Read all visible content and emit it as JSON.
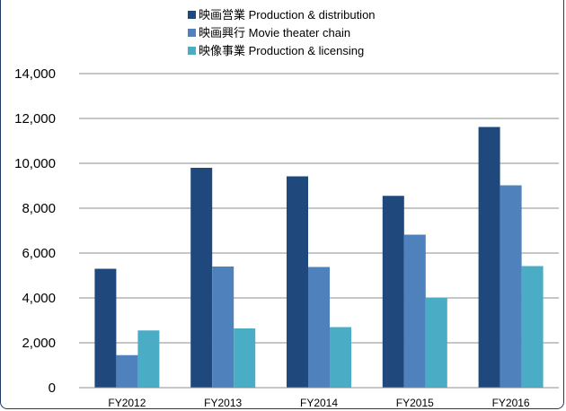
{
  "chart_data": {
    "type": "bar",
    "categories": [
      "FY2012",
      "FY2013",
      "FY2014",
      "FY2015",
      "FY2016"
    ],
    "series": [
      {
        "name": "映画営業 Production & distribution",
        "color": "#1f497d",
        "values": [
          5300,
          9800,
          9420,
          8550,
          11620
        ]
      },
      {
        "name": "映画興行 Movie theater chain",
        "color": "#4f81bd",
        "values": [
          1450,
          5400,
          5380,
          6820,
          9020
        ]
      },
      {
        "name": "映像事業 Production & licensing",
        "color": "#4bacc6",
        "values": [
          2550,
          2640,
          2700,
          4020,
          5420
        ]
      }
    ],
    "yticks": [
      "0",
      "2,000",
      "4,000",
      "6,000",
      "8,000",
      "10,000",
      "12,000",
      "14,000"
    ],
    "ylim": [
      0,
      14000
    ],
    "grid": true,
    "legend_position": "top-center"
  }
}
